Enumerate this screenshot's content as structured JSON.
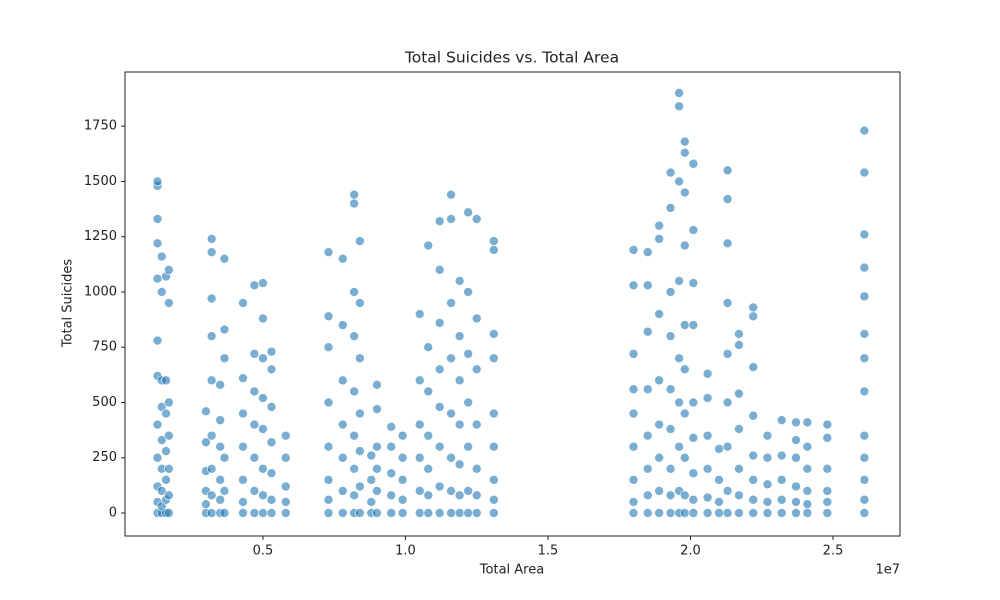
{
  "chart_data": {
    "type": "scatter",
    "title": "Total Suicides vs. Total Area",
    "x_label": "Total Area",
    "y_label": "Total Suicides",
    "x_offset_label": "1e7",
    "color": "#1f77b4",
    "xlim": [
      160000,
      27350000
    ],
    "ylim": [
      -104,
      1995
    ],
    "xticks": [
      {
        "value": 5000000,
        "label": "0.5"
      },
      {
        "value": 10000000,
        "label": "1.0"
      },
      {
        "value": 15000000,
        "label": "1.5"
      },
      {
        "value": 20000000,
        "label": "2.0"
      },
      {
        "value": 25000000,
        "label": "2.5"
      }
    ],
    "yticks": [
      0,
      250,
      500,
      750,
      1000,
      1250,
      1500,
      1750
    ],
    "x": [
      1300000,
      1300000,
      1300000,
      1300000,
      1300000,
      1300000,
      1300000,
      1300000,
      1300000,
      1300000,
      1300000,
      1300000,
      1450000,
      1450000,
      1450000,
      1450000,
      1450000,
      1450000,
      1450000,
      1450000,
      1450000,
      1600000,
      1600000,
      1600000,
      1600000,
      1600000,
      1600000,
      1600000,
      1700000,
      1700000,
      1700000,
      1700000,
      1700000,
      1700000,
      1700000,
      3000000,
      3000000,
      3000000,
      3000000,
      3000000,
      3000000,
      3200000,
      3200000,
      3200000,
      3200000,
      3200000,
      3200000,
      3200000,
      3200000,
      3200000,
      3500000,
      3500000,
      3500000,
      3500000,
      3500000,
      3500000,
      3650000,
      3650000,
      3650000,
      3650000,
      3650000,
      3650000,
      4300000,
      4300000,
      4300000,
      4300000,
      4300000,
      4300000,
      4300000,
      4700000,
      4700000,
      4700000,
      4700000,
      4700000,
      4700000,
      4700000,
      5000000,
      5000000,
      5000000,
      5000000,
      5000000,
      5000000,
      5000000,
      5000000,
      5300000,
      5300000,
      5300000,
      5300000,
      5300000,
      5300000,
      5300000,
      5800000,
      5800000,
      5800000,
      5800000,
      5800000,
      7300000,
      7300000,
      7300000,
      7300000,
      7300000,
      7300000,
      7300000,
      7300000,
      7800000,
      7800000,
      7800000,
      7800000,
      7800000,
      7800000,
      7800000,
      8200000,
      8200000,
      8200000,
      8200000,
      8200000,
      8200000,
      8200000,
      8200000,
      8200000,
      8400000,
      8400000,
      8400000,
      8400000,
      8400000,
      8400000,
      8400000,
      8800000,
      8800000,
      8800000,
      8800000,
      9000000,
      9000000,
      9000000,
      9000000,
      9000000,
      9000000,
      9500000,
      9500000,
      9500000,
      9500000,
      9500000,
      9900000,
      9900000,
      9900000,
      9900000,
      9900000,
      10500000,
      10500000,
      10500000,
      10500000,
      10500000,
      10500000,
      10800000,
      10800000,
      10800000,
      10800000,
      10800000,
      10800000,
      10800000,
      11200000,
      11200000,
      11200000,
      11200000,
      11200000,
      11200000,
      11200000,
      11200000,
      11600000,
      11600000,
      11600000,
      11600000,
      11600000,
      11600000,
      11600000,
      11600000,
      11900000,
      11900000,
      11900000,
      11900000,
      11900000,
      11900000,
      11900000,
      12200000,
      12200000,
      12200000,
      12200000,
      12200000,
      12200000,
      12200000,
      12500000,
      12500000,
      12500000,
      12500000,
      12500000,
      12500000,
      12500000,
      13100000,
      13100000,
      13100000,
      13100000,
      13100000,
      13100000,
      13100000,
      13100000,
      13100000,
      18000000,
      18000000,
      18000000,
      18000000,
      18000000,
      18000000,
      18000000,
      18000000,
      18000000,
      18500000,
      18500000,
      18500000,
      18500000,
      18500000,
      18500000,
      18500000,
      18500000,
      18900000,
      18900000,
      18900000,
      18900000,
      18900000,
      18900000,
      18900000,
      18900000,
      19300000,
      19300000,
      19300000,
      19300000,
      19300000,
      19300000,
      19300000,
      19300000,
      19300000,
      19600000,
      19600000,
      19600000,
      19600000,
      19600000,
      19600000,
      19600000,
      19600000,
      19600000,
      19800000,
      19800000,
      19800000,
      19800000,
      19800000,
      19800000,
      19800000,
      19800000,
      19800000,
      19800000,
      20100000,
      20100000,
      20100000,
      20100000,
      20100000,
      20100000,
      20100000,
      20100000,
      20100000,
      20600000,
      20600000,
      20600000,
      20600000,
      20600000,
      20600000,
      21000000,
      21000000,
      21000000,
      21000000,
      21300000,
      21300000,
      21300000,
      21300000,
      21300000,
      21300000,
      21300000,
      21300000,
      21300000,
      21700000,
      21700000,
      21700000,
      21700000,
      21700000,
      21700000,
      21700000,
      22200000,
      22200000,
      22200000,
      22200000,
      22200000,
      22200000,
      22200000,
      22200000,
      22700000,
      22700000,
      22700000,
      22700000,
      22700000,
      23200000,
      23200000,
      23200000,
      23200000,
      23200000,
      23700000,
      23700000,
      23700000,
      23700000,
      23700000,
      23700000,
      24100000,
      24100000,
      24100000,
      24100000,
      24100000,
      24100000,
      24800000,
      24800000,
      24800000,
      24800000,
      24800000,
      24800000,
      26100000,
      26100000,
      26100000,
      26100000,
      26100000,
      26100000,
      26100000,
      26100000,
      26100000,
      26100000,
      26100000,
      26100000,
      26100000
    ],
    "values": [
      0,
      50,
      120,
      250,
      400,
      620,
      780,
      1060,
      1220,
      1330,
      1480,
      1500,
      0,
      30,
      100,
      200,
      330,
      480,
      600,
      1000,
      1160,
      0,
      60,
      150,
      280,
      450,
      600,
      1070,
      0,
      80,
      200,
      350,
      500,
      950,
      1100,
      0,
      40,
      100,
      190,
      320,
      460,
      0,
      80,
      200,
      350,
      600,
      800,
      970,
      1180,
      1240,
      0,
      60,
      150,
      300,
      420,
      580,
      0,
      100,
      250,
      700,
      830,
      1150,
      0,
      50,
      150,
      300,
      450,
      610,
      950,
      0,
      100,
      250,
      400,
      550,
      720,
      1030,
      0,
      80,
      200,
      380,
      520,
      700,
      880,
      1040,
      0,
      60,
      180,
      320,
      480,
      650,
      730,
      0,
      50,
      120,
      250,
      350,
      0,
      60,
      150,
      300,
      500,
      750,
      890,
      1180,
      0,
      100,
      250,
      400,
      600,
      850,
      1150,
      0,
      80,
      200,
      350,
      550,
      800,
      1000,
      1400,
      1440,
      0,
      120,
      280,
      450,
      700,
      950,
      1230,
      0,
      50,
      150,
      260,
      0,
      100,
      200,
      300,
      470,
      580,
      0,
      80,
      180,
      300,
      390,
      0,
      60,
      150,
      250,
      350,
      0,
      100,
      250,
      400,
      600,
      900,
      0,
      80,
      200,
      350,
      550,
      750,
      1210,
      0,
      120,
      300,
      480,
      650,
      860,
      1100,
      1320,
      0,
      100,
      250,
      450,
      700,
      950,
      1330,
      1440,
      0,
      80,
      220,
      400,
      600,
      800,
      1050,
      0,
      100,
      300,
      500,
      720,
      1000,
      1360,
      0,
      80,
      200,
      400,
      650,
      880,
      1330,
      0,
      60,
      150,
      300,
      450,
      700,
      810,
      1190,
      1230,
      0,
      50,
      150,
      300,
      450,
      560,
      720,
      1030,
      1190,
      0,
      80,
      200,
      350,
      560,
      820,
      1030,
      1180,
      0,
      100,
      250,
      400,
      600,
      900,
      1240,
      1300,
      0,
      80,
      200,
      380,
      560,
      800,
      1000,
      1380,
      1540,
      0,
      100,
      300,
      500,
      700,
      1050,
      1500,
      1840,
      1900,
      0,
      80,
      250,
      450,
      650,
      850,
      1210,
      1450,
      1630,
      1680,
      0,
      60,
      180,
      340,
      500,
      850,
      1040,
      1280,
      1580,
      0,
      70,
      200,
      350,
      520,
      630,
      0,
      50,
      150,
      290,
      0,
      100,
      300,
      500,
      720,
      950,
      1220,
      1420,
      1550,
      0,
      80,
      200,
      380,
      540,
      760,
      810,
      0,
      60,
      150,
      260,
      440,
      660,
      890,
      930,
      0,
      50,
      130,
      250,
      350,
      0,
      60,
      150,
      260,
      420,
      0,
      50,
      120,
      250,
      330,
      410,
      0,
      40,
      100,
      200,
      300,
      410,
      0,
      50,
      100,
      200,
      340,
      400,
      0,
      60,
      150,
      250,
      350,
      550,
      700,
      810,
      980,
      1110,
      1260,
      1540,
      1730
    ]
  }
}
